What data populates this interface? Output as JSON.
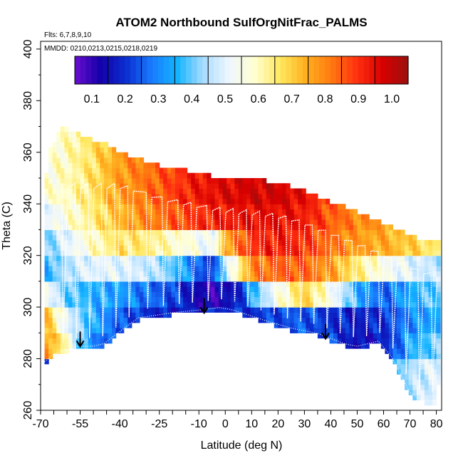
{
  "chart_data": {
    "type": "heatmap",
    "title": "ATOM2 Northbound SulfOrgNitFrac_PALMS",
    "flights_note": "Flts: 6,7,8,9,10",
    "dates_note": "MMDD: 0210,0213,0215,0218,0219",
    "xlabel": "Latitude (deg N)",
    "ylabel": "Theta (C)",
    "xlim": [
      -70,
      82
    ],
    "ylim": [
      260,
      403
    ],
    "x_ticks": [
      "-70",
      "-55",
      "-40",
      "-25",
      "-10",
      "0",
      "10",
      "20",
      "30",
      "40",
      "50",
      "60",
      "70",
      "80"
    ],
    "y_ticks": [
      "260",
      "280",
      "300",
      "320",
      "340",
      "360",
      "380",
      "400"
    ],
    "colorbar": {
      "range": [
        0,
        1
      ],
      "ticks": [
        "0.1",
        "0.2",
        "0.3",
        "0.4",
        "0.5",
        "0.6",
        "0.7",
        "0.8",
        "0.9",
        "1.0"
      ],
      "colors": [
        "#6a0dcf",
        "#1400a8",
        "#0a2fd0",
        "#1a7bff",
        "#14b4ff",
        "#a8dcff",
        "#eef6ff",
        "#ffffd2",
        "#ffe860",
        "#ffb020",
        "#ff7a10",
        "#ff3010",
        "#d80000",
        "#9a1010"
      ]
    },
    "top_boundary": [
      [
        -68.5,
        345
      ],
      [
        -67,
        360
      ],
      [
        -62,
        370
      ],
      [
        -55,
        367
      ],
      [
        -45,
        363
      ],
      [
        -35,
        358
      ],
      [
        -25,
        355
      ],
      [
        -15,
        353
      ],
      [
        -5,
        351
      ],
      [
        5,
        350
      ],
      [
        15,
        349
      ],
      [
        25,
        347
      ],
      [
        35,
        343
      ],
      [
        45,
        339
      ],
      [
        55,
        335
      ],
      [
        65,
        330
      ],
      [
        75,
        326
      ],
      [
        80.5,
        325
      ]
    ],
    "bottom_boundary": [
      [
        -68.5,
        278
      ],
      [
        -65,
        281
      ],
      [
        -56,
        284
      ],
      [
        -50,
        284
      ],
      [
        -46,
        285
      ],
      [
        -37,
        292
      ],
      [
        -33,
        295
      ],
      [
        -20,
        297
      ],
      [
        -10,
        298
      ],
      [
        -2,
        299
      ],
      [
        3,
        298
      ],
      [
        15,
        294
      ],
      [
        25,
        291
      ],
      [
        35,
        289
      ],
      [
        40,
        287
      ],
      [
        45,
        285
      ],
      [
        50,
        284
      ],
      [
        58,
        286
      ],
      [
        63,
        280
      ],
      [
        70,
        266
      ],
      [
        75,
        263
      ],
      [
        80,
        263
      ],
      [
        80.5,
        270
      ]
    ],
    "bands": [
      {
        "theta": [
          340,
          370
        ],
        "values": [
          [
            -68.5,
            0.52
          ],
          [
            -60,
            0.55
          ],
          [
            -50,
            0.62
          ],
          [
            -40,
            0.72
          ],
          [
            -25,
            0.8
          ],
          [
            -15,
            0.86
          ],
          [
            -5,
            0.9
          ],
          [
            5,
            0.92
          ],
          [
            15,
            0.93
          ],
          [
            25,
            0.92
          ],
          [
            35,
            0.86
          ],
          [
            45,
            0.8
          ],
          [
            55,
            0.74
          ],
          [
            65,
            0.7
          ],
          [
            80.5,
            0.68
          ]
        ]
      },
      {
        "theta": [
          330,
          340
        ],
        "values": [
          [
            -68.5,
            0.45
          ],
          [
            -60,
            0.52
          ],
          [
            -50,
            0.6
          ],
          [
            -40,
            0.68
          ],
          [
            -30,
            0.75
          ],
          [
            -20,
            0.8
          ],
          [
            -10,
            0.85
          ],
          [
            0,
            0.88
          ],
          [
            10,
            0.9
          ],
          [
            20,
            0.9
          ],
          [
            30,
            0.88
          ],
          [
            40,
            0.8
          ],
          [
            50,
            0.75
          ],
          [
            60,
            0.72
          ],
          [
            80.5,
            0.7
          ]
        ]
      },
      {
        "theta": [
          320,
          330
        ],
        "values": [
          [
            -68.5,
            0.35
          ],
          [
            -60,
            0.45
          ],
          [
            -50,
            0.55
          ],
          [
            -40,
            0.62
          ],
          [
            -30,
            0.6
          ],
          [
            -20,
            0.55
          ],
          [
            -10,
            0.5
          ],
          [
            -5,
            0.45
          ],
          [
            0,
            0.7
          ],
          [
            10,
            0.85
          ],
          [
            20,
            0.88
          ],
          [
            30,
            0.85
          ],
          [
            40,
            0.78
          ],
          [
            50,
            0.72
          ],
          [
            60,
            0.7
          ],
          [
            70,
            0.65
          ],
          [
            80.5,
            0.6
          ]
        ]
      },
      {
        "theta": [
          310,
          320
        ],
        "values": [
          [
            -68.5,
            0.3
          ],
          [
            -60,
            0.4
          ],
          [
            -50,
            0.45
          ],
          [
            -40,
            0.45
          ],
          [
            -30,
            0.42
          ],
          [
            -20,
            0.35
          ],
          [
            -10,
            0.2
          ],
          [
            -5,
            0.15
          ],
          [
            0,
            0.4
          ],
          [
            10,
            0.75
          ],
          [
            20,
            0.8
          ],
          [
            30,
            0.8
          ],
          [
            40,
            0.72
          ],
          [
            50,
            0.6
          ],
          [
            60,
            0.5
          ],
          [
            70,
            0.45
          ],
          [
            80.5,
            0.4
          ]
        ]
      },
      {
        "theta": [
          300,
          310
        ],
        "values": [
          [
            -68.5,
            0.5
          ],
          [
            -60,
            0.35
          ],
          [
            -50,
            0.3
          ],
          [
            -40,
            0.28
          ],
          [
            -30,
            0.22
          ],
          [
            -20,
            0.18
          ],
          [
            -10,
            0.08
          ],
          [
            -5,
            0.05
          ],
          [
            0,
            0.1
          ],
          [
            5,
            0.12
          ],
          [
            10,
            0.3
          ],
          [
            20,
            0.5
          ],
          [
            30,
            0.65
          ],
          [
            40,
            0.5
          ],
          [
            50,
            0.3
          ],
          [
            60,
            0.2
          ],
          [
            70,
            0.3
          ],
          [
            80.5,
            0.35
          ]
        ]
      },
      {
        "theta": [
          290,
          300
        ],
        "values": [
          [
            -68.5,
            0.7
          ],
          [
            -60,
            0.45
          ],
          [
            -50,
            0.3
          ],
          [
            -40,
            0.2
          ],
          [
            -30,
            0.15
          ],
          [
            -20,
            0.12
          ],
          [
            -10,
            0.12
          ],
          [
            0,
            0.15
          ],
          [
            10,
            0.15
          ],
          [
            20,
            0.18
          ],
          [
            30,
            0.2
          ],
          [
            40,
            0.15
          ],
          [
            50,
            0.12
          ],
          [
            60,
            0.15
          ],
          [
            70,
            0.25
          ],
          [
            80.5,
            0.3
          ]
        ]
      },
      {
        "theta": [
          280,
          290
        ],
        "values": [
          [
            -68.5,
            0.75
          ],
          [
            -60,
            0.55
          ],
          [
            -55,
            0.35
          ],
          [
            -50,
            0.25
          ],
          [
            -45,
            0.2
          ],
          [
            -40,
            0.2
          ],
          [
            -30,
            0.18
          ],
          [
            20,
            0.15
          ],
          [
            30,
            0.12
          ],
          [
            40,
            0.18
          ],
          [
            50,
            0.1
          ],
          [
            60,
            0.12
          ],
          [
            65,
            0.2
          ],
          [
            70,
            0.3
          ],
          [
            80.5,
            0.35
          ]
        ]
      },
      {
        "theta": [
          258,
          280
        ],
        "values": [
          [
            -68.5,
            0.12
          ],
          [
            -60,
            0.1
          ],
          [
            55,
            0.2
          ],
          [
            60,
            0.25
          ],
          [
            65,
            0.3
          ],
          [
            70,
            0.4
          ],
          [
            80.5,
            0.45
          ]
        ]
      }
    ],
    "arrows": [
      [
        -55,
        285
      ],
      [
        -8,
        298
      ],
      [
        38,
        288
      ]
    ]
  }
}
